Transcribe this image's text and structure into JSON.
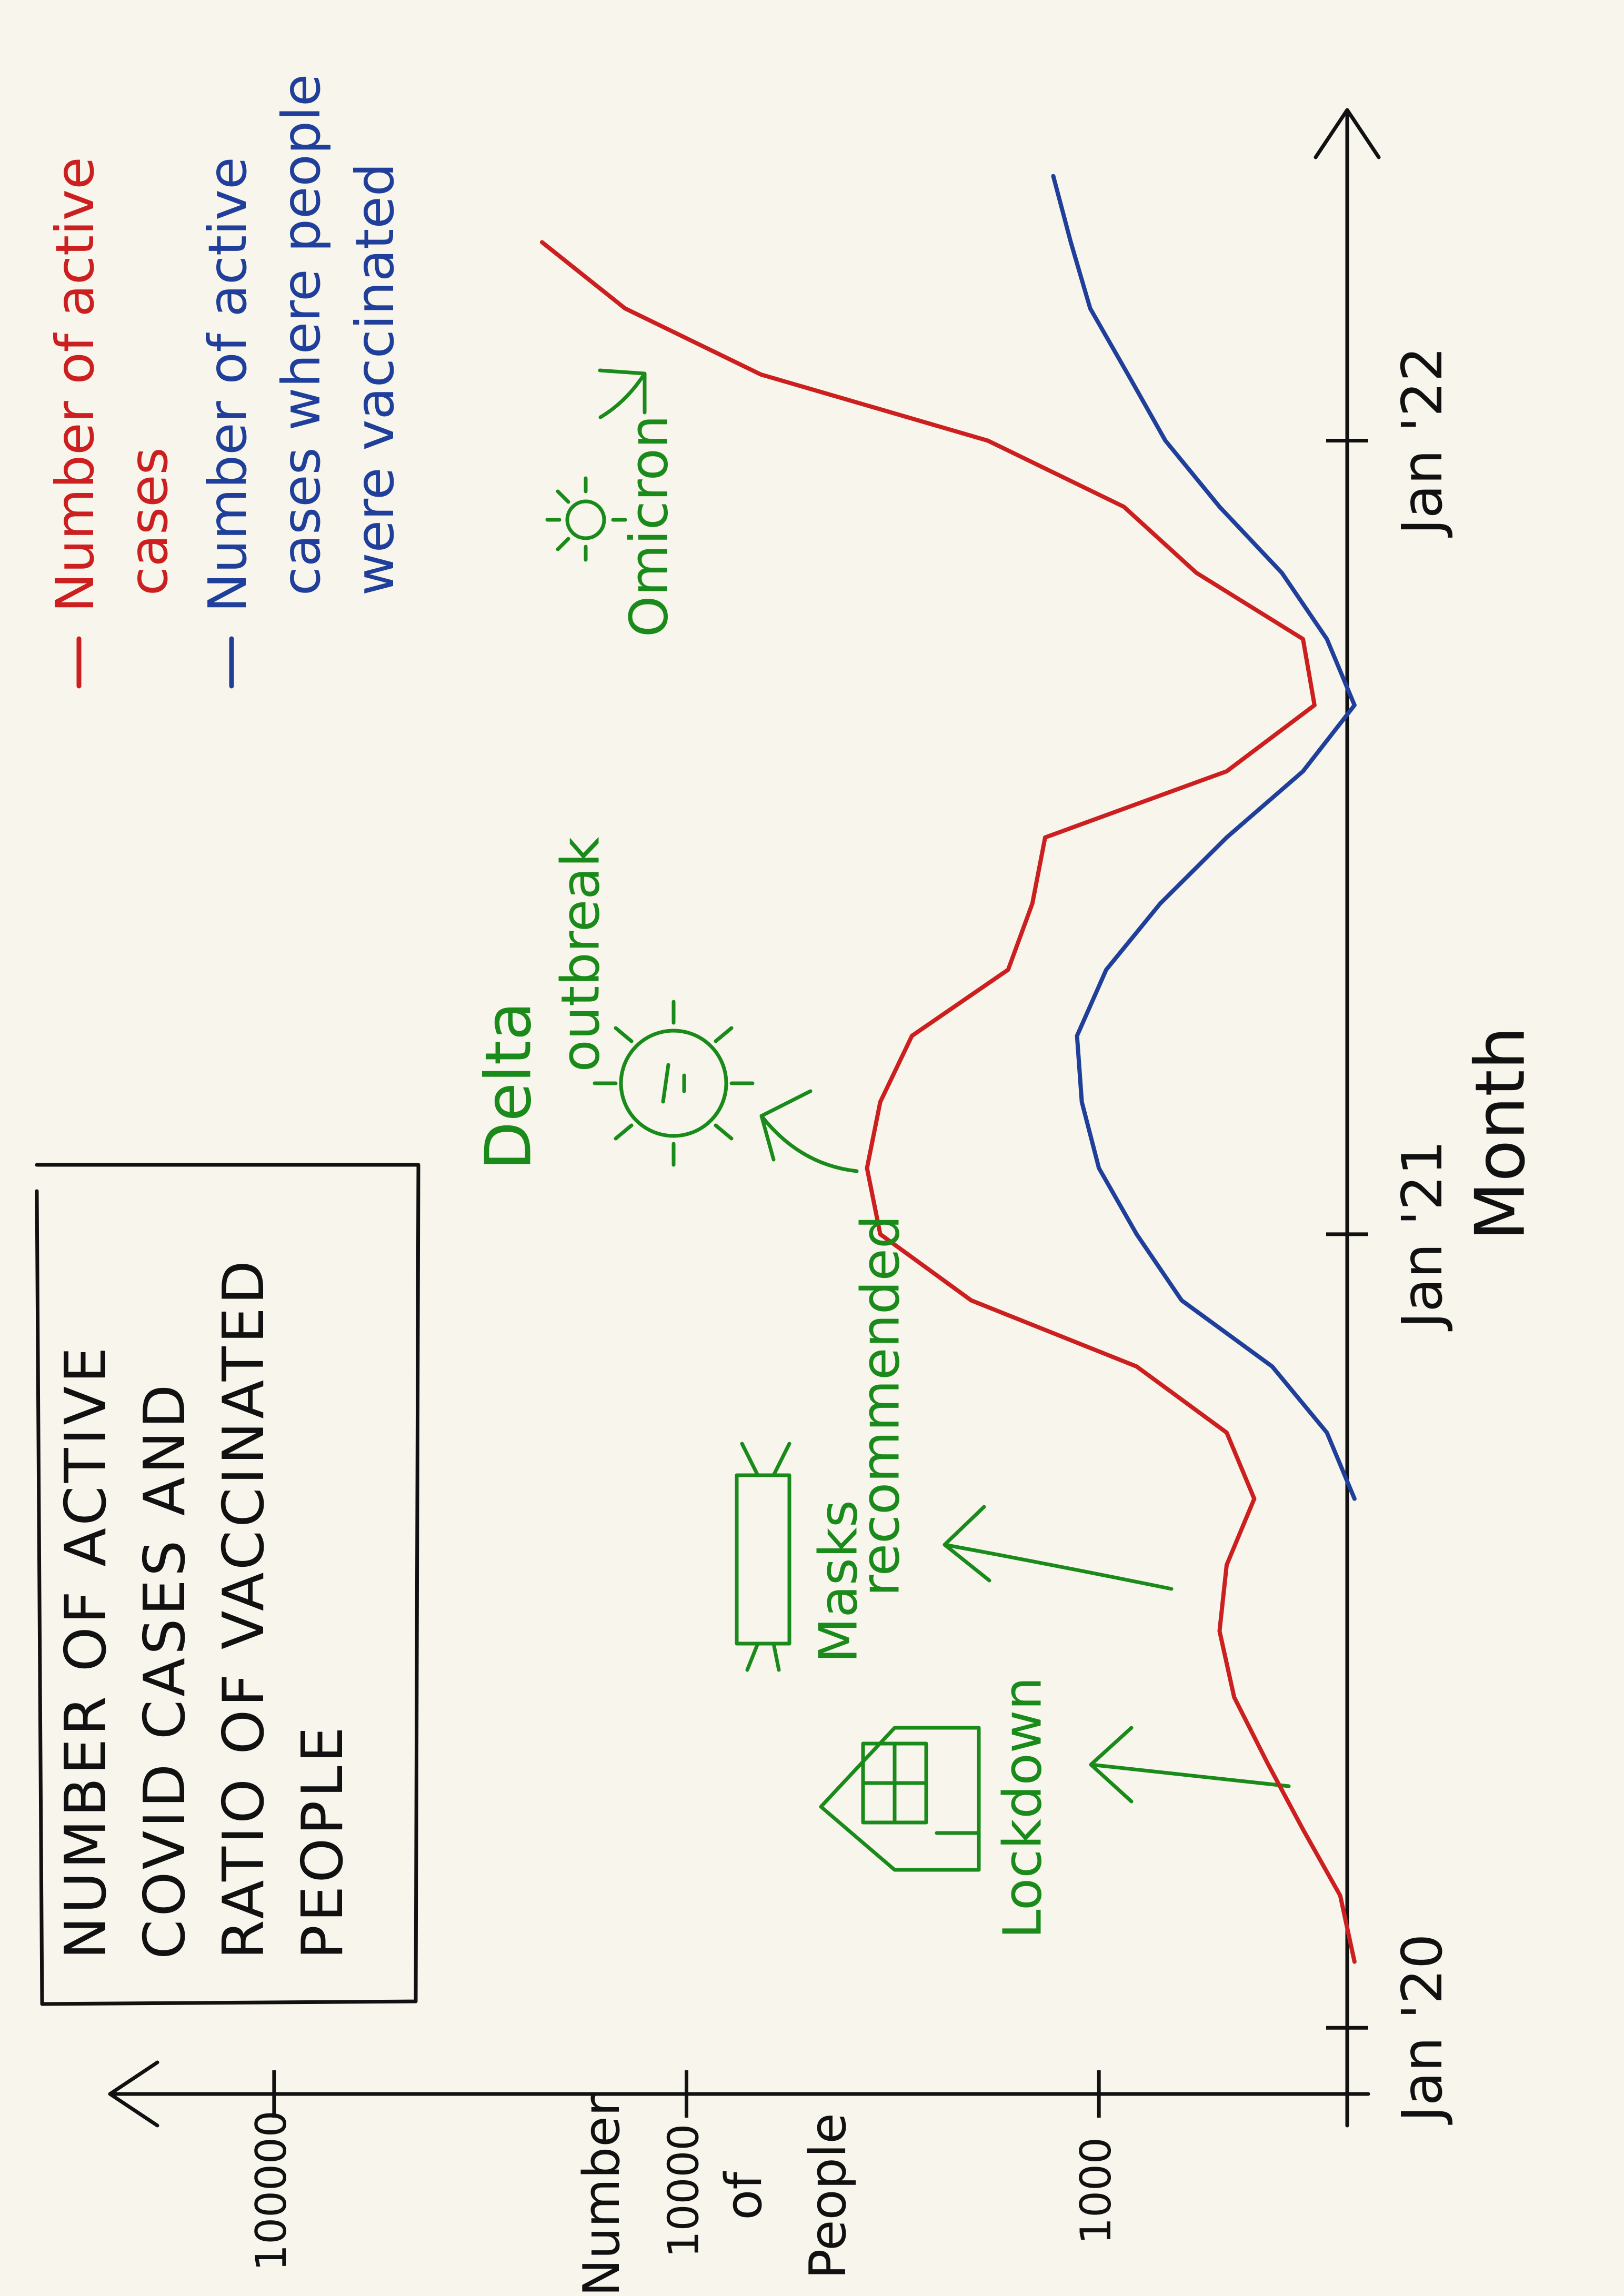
{
  "chart_data": {
    "type": "line",
    "title": [
      "NUMBER OF ACTIVE",
      "COVID CASES AND",
      "RATIO OF VACCINATED",
      "PEOPLE"
    ],
    "x_label": "Month",
    "y_label": [
      "Number",
      "of",
      "People"
    ],
    "x": [
      "2020-02",
      "2020-03",
      "2020-04",
      "2020-05",
      "2020-06",
      "2020-07",
      "2020-08",
      "2020-09",
      "2020-10",
      "2020-11",
      "2020-12",
      "2021-01",
      "2021-02",
      "2021-03",
      "2021-04",
      "2021-05",
      "2021-06",
      "2021-07",
      "2021-08",
      "2021-09",
      "2021-10",
      "2021-11",
      "2021-12",
      "2022-01",
      "2022-02",
      "2022-03",
      "2022-04",
      "2022-05"
    ],
    "series": [
      {
        "name": "Number of active cases",
        "color": "#cc1f1f",
        "values": [
          240,
          260,
          320,
          390,
          470,
          510,
          490,
          420,
          490,
          810,
          2040,
          3390,
          3650,
          3390,
          2840,
          1660,
          1450,
          1350,
          490,
          300,
          320,
          580,
          870,
          1860,
          6600,
          14100,
          22400,
          null
        ]
      },
      {
        "name": "Number of active cases where people were vaccinated",
        "color": "#1f3f9a",
        "values": [
          null,
          null,
          null,
          null,
          null,
          null,
          null,
          240,
          280,
          380,
          630,
          810,
          1000,
          1100,
          1130,
          960,
          710,
          490,
          320,
          240,
          280,
          360,
          510,
          690,
          850,
          1050,
          1170,
          1290
        ]
      }
    ],
    "xlim": [
      "2019-12",
      "2022-06"
    ],
    "xticks": [
      {
        "value": "2020-01",
        "label": "Jan '20"
      },
      {
        "value": "2021-01",
        "label": "Jan '21"
      },
      {
        "value": "2022-01",
        "label": "Jan '22"
      }
    ],
    "ylim": [
      250,
      250000
    ],
    "yticks": [
      1000,
      10000,
      100000
    ],
    "log_y": true,
    "legend": "upper right",
    "annotations": [
      [
        "Lockdown"
      ],
      [
        "Masks",
        "recommended"
      ],
      [
        "Delta",
        "outbreak"
      ],
      [
        "Omicron"
      ]
    ],
    "annotation_color": "#1a8a1a"
  }
}
